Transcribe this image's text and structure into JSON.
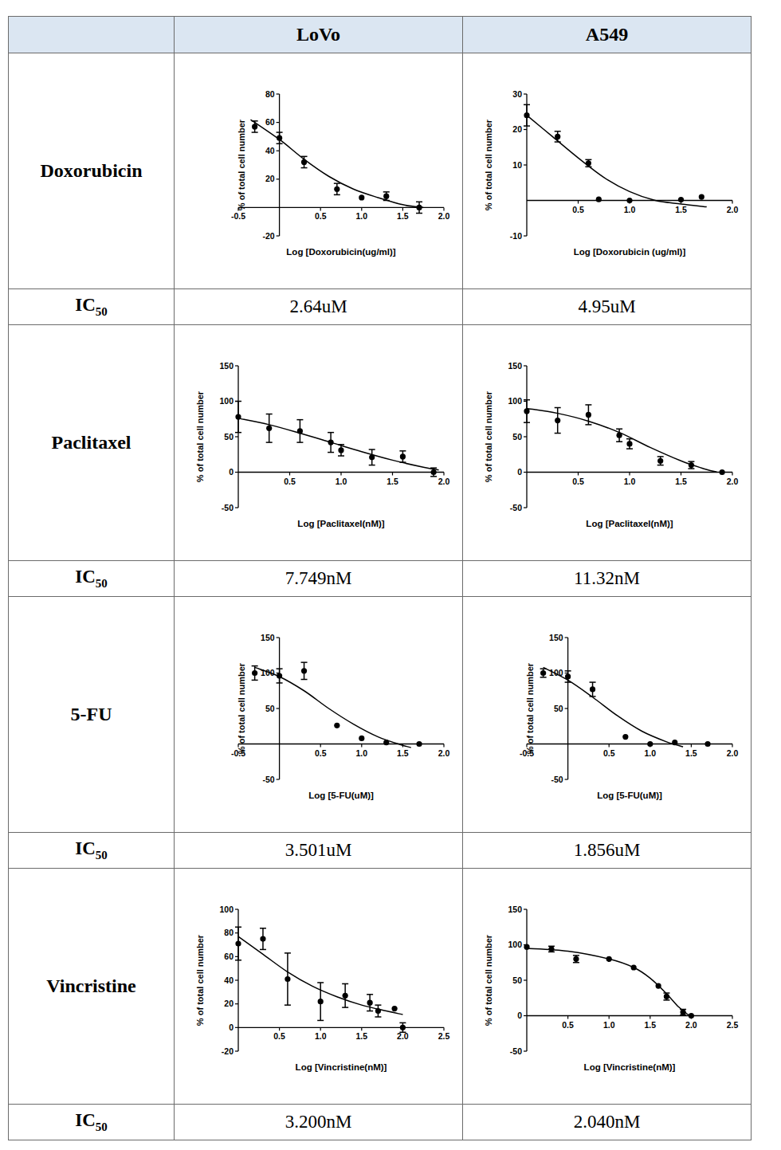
{
  "table": {
    "header": [
      "LoVo",
      "A549"
    ],
    "ic50_label": [
      "IC",
      "50"
    ],
    "rows": [
      {
        "drug": "Doxorubicin",
        "ic50": [
          "2.64uM",
          "4.95uM"
        ]
      },
      {
        "drug": "Paclitaxel",
        "ic50": [
          "7.749nM",
          "11.32nM"
        ]
      },
      {
        "drug": "5-FU",
        "ic50": [
          "3.501uM",
          "1.856uM"
        ]
      },
      {
        "drug": "Vincristine",
        "ic50": [
          "3.200nM",
          "2.040nM"
        ]
      }
    ]
  },
  "chart_data": [
    {
      "type": "scatter",
      "x_label": "Log [Doxorubicin(ug/ml)]",
      "y_label": "% of total cell number",
      "xlim": [
        -0.5,
        2
      ],
      "ylim": [
        -20,
        80
      ],
      "xticks": [
        -0.5,
        0.5,
        {
          "value": 1,
          "label": "1.0"
        },
        1.5,
        {
          "value": 2,
          "label": "2.0"
        }
      ],
      "yticks": [
        -20,
        20,
        40,
        60,
        80
      ],
      "series": [
        {
          "type": "scatter",
          "marker": "circle",
          "x": [
            -0.3,
            0,
            0.3,
            0.7,
            1,
            1.3,
            1.7
          ],
          "values": [
            57,
            49,
            32,
            13,
            7,
            8,
            0
          ],
          "errors": [
            4,
            4,
            4,
            4,
            0,
            3,
            4
          ]
        },
        {
          "type": "line",
          "line_style": "solid",
          "x": [
            -0.35,
            0,
            0.3,
            0.6,
            0.9,
            1.2,
            1.5,
            1.75
          ],
          "values": [
            62,
            48,
            34,
            22,
            13,
            7,
            2,
            0
          ]
        }
      ]
    },
    {
      "type": "scatter",
      "x_label": "Log [Doxorubicin (ug/ml)]",
      "y_label": "% of total cell number",
      "xlim": [
        0,
        2
      ],
      "ylim": [
        -10,
        30
      ],
      "xticks": [
        0.5,
        {
          "value": 1,
          "label": "1.0"
        },
        1.5,
        {
          "value": 2,
          "label": "2.0"
        }
      ],
      "yticks": [
        -10,
        10,
        20,
        30
      ],
      "series": [
        {
          "type": "scatter",
          "marker": "circle",
          "x": [
            0,
            0.3,
            0.6,
            0.7,
            1,
            1.5,
            1.7
          ],
          "values": [
            24,
            18,
            10.5,
            0.3,
            0,
            0.2,
            1
          ],
          "errors": [
            3,
            1.5,
            1,
            0,
            0,
            0,
            0
          ]
        },
        {
          "type": "line",
          "line_style": "solid",
          "x": [
            0,
            0.25,
            0.5,
            0.75,
            1,
            1.25,
            1.5,
            1.75
          ],
          "values": [
            24,
            18,
            12,
            6.5,
            2.5,
            0,
            -1,
            -1.8
          ]
        }
      ]
    },
    {
      "type": "scatter",
      "x_label": "Log [Paclitaxel(nM)]",
      "y_label": "% of total cell number",
      "xlim": [
        0,
        2
      ],
      "ylim": [
        -50,
        150
      ],
      "xticks": [
        0.5,
        {
          "value": 1,
          "label": "1.0"
        },
        1.5,
        {
          "value": 2,
          "label": "2.0"
        }
      ],
      "yticks": [
        -50,
        0,
        50,
        100,
        150
      ],
      "series": [
        {
          "type": "scatter",
          "marker": "circle",
          "x": [
            0,
            0.3,
            0.6,
            0.9,
            1,
            1.3,
            1.6,
            1.9
          ],
          "values": [
            78,
            62,
            58,
            42,
            31,
            21,
            22,
            0
          ],
          "errors": [
            22,
            20,
            16,
            14,
            8,
            11,
            8,
            6
          ]
        },
        {
          "type": "line",
          "line_style": "solid",
          "x": [
            0,
            0.3,
            0.6,
            0.9,
            1.2,
            1.5,
            1.8,
            1.95
          ],
          "values": [
            76,
            67,
            55,
            42,
            29,
            17,
            7,
            3
          ]
        }
      ]
    },
    {
      "type": "scatter",
      "x_label": "Log [Paclitaxel(nM)]",
      "y_label": "% of total cell number",
      "xlim": [
        0,
        2
      ],
      "ylim": [
        -50,
        150
      ],
      "xticks": [
        0.5,
        {
          "value": 1,
          "label": "1.0"
        },
        1.5,
        {
          "value": 2,
          "label": "2.0"
        }
      ],
      "yticks": [
        -50,
        0,
        50,
        100,
        150
      ],
      "series": [
        {
          "type": "scatter",
          "marker": "circle",
          "x": [
            0,
            0.3,
            0.6,
            0.9,
            1,
            1.3,
            1.6,
            1.9
          ],
          "values": [
            86,
            73,
            81,
            52,
            40,
            16,
            10,
            0
          ],
          "errors": [
            16,
            18,
            14,
            9,
            7,
            6,
            5,
            0
          ]
        },
        {
          "type": "line",
          "line_style": "solid",
          "x": [
            0,
            0.3,
            0.6,
            0.9,
            1.2,
            1.5,
            1.7,
            1.85
          ],
          "values": [
            90,
            83,
            72,
            56,
            35,
            16,
            6,
            0
          ]
        }
      ]
    },
    {
      "type": "scatter",
      "x_label": "Log [5-FU(uM)]",
      "y_label": "% of total cell number",
      "xlim": [
        -0.5,
        2
      ],
      "ylim": [
        -50,
        150
      ],
      "xticks": [
        -0.5,
        0.5,
        {
          "value": 1,
          "label": "1.0"
        },
        1.5,
        {
          "value": 2,
          "label": "2.0"
        }
      ],
      "yticks": [
        -50,
        50,
        100,
        150
      ],
      "series": [
        {
          "type": "scatter",
          "marker": "circle",
          "x": [
            -0.3,
            0,
            0.3,
            0.7,
            1,
            1.3,
            1.7
          ],
          "values": [
            100,
            96,
            103,
            26,
            8,
            2,
            0
          ],
          "errors": [
            10,
            10,
            12,
            0,
            0,
            0,
            0
          ]
        },
        {
          "type": "line",
          "line_style": "solid",
          "x": [
            -0.3,
            0,
            0.3,
            0.6,
            0.9,
            1.2,
            1.5,
            1.6
          ],
          "values": [
            108,
            95,
            75,
            50,
            28,
            10,
            -2,
            -5
          ]
        }
      ]
    },
    {
      "type": "scatter",
      "x_label": "Log [5-FU(uM)]",
      "y_label": "% of total cell number",
      "xlim": [
        -0.5,
        2
      ],
      "ylim": [
        -50,
        150
      ],
      "xticks": [
        -0.5,
        0.5,
        {
          "value": 1,
          "label": "1.0"
        },
        1.5,
        {
          "value": 2,
          "label": "2.0"
        }
      ],
      "yticks": [
        -50,
        50,
        100,
        150
      ],
      "series": [
        {
          "type": "scatter",
          "marker": "circle",
          "x": [
            -0.3,
            0,
            0.3,
            0.7,
            1,
            1.3,
            1.7
          ],
          "values": [
            100,
            95,
            77,
            10,
            0,
            2,
            0
          ],
          "errors": [
            6,
            8,
            10,
            0,
            0,
            0,
            0
          ]
        },
        {
          "type": "line",
          "line_style": "solid",
          "x": [
            -0.3,
            0,
            0.3,
            0.6,
            0.9,
            1.2,
            1.4
          ],
          "values": [
            108,
            90,
            66,
            40,
            18,
            3,
            -4
          ]
        }
      ]
    },
    {
      "type": "scatter",
      "x_label": "Log [Vincristine(nM)]",
      "y_label": "% of total cell number",
      "xlim": [
        0,
        2.5
      ],
      "ylim": [
        -20,
        100
      ],
      "xticks": [
        0.5,
        {
          "value": 1,
          "label": "1.0"
        },
        1.5,
        {
          "value": 2,
          "label": "2.0"
        },
        2.5
      ],
      "yticks": [
        -20,
        0,
        20,
        40,
        60,
        80,
        100
      ],
      "series": [
        {
          "type": "scatter",
          "marker": "circle",
          "x": [
            0,
            0.3,
            0.6,
            1,
            1.3,
            1.6,
            1.7,
            1.9,
            2
          ],
          "values": [
            71,
            75,
            41,
            22,
            27,
            21,
            14,
            16,
            0
          ],
          "errors": [
            14,
            9,
            22,
            16,
            10,
            7,
            5,
            0,
            4
          ]
        },
        {
          "type": "line",
          "line_style": "solid",
          "x": [
            0,
            0.3,
            0.6,
            0.9,
            1.2,
            1.5,
            1.8,
            2
          ],
          "values": [
            77,
            62,
            47,
            35,
            26,
            19,
            14,
            11
          ]
        }
      ]
    },
    {
      "type": "scatter",
      "x_label": "Log [Vincristine(nM)]",
      "y_label": "% of total cell number",
      "xlim": [
        0,
        2.5
      ],
      "ylim": [
        -50,
        150
      ],
      "xticks": [
        0.5,
        {
          "value": 1,
          "label": "1.0"
        },
        1.5,
        {
          "value": 2,
          "label": "2.0"
        },
        2.5
      ],
      "yticks": [
        -50,
        0,
        50,
        100,
        150
      ],
      "series": [
        {
          "type": "scatter",
          "marker": "circle",
          "x": [
            0,
            0.3,
            0.6,
            1,
            1.3,
            1.6,
            1.7,
            1.9,
            2
          ],
          "values": [
            97,
            94,
            80,
            80,
            68,
            42,
            27,
            5,
            0
          ],
          "errors": [
            0,
            4,
            5,
            0,
            0,
            0,
            5,
            4,
            0
          ]
        },
        {
          "type": "line",
          "line_style": "solid",
          "x": [
            0,
            0.5,
            1,
            1.3,
            1.5,
            1.7,
            1.85,
            2
          ],
          "values": [
            95,
            91,
            80,
            68,
            53,
            31,
            12,
            -2
          ]
        }
      ]
    }
  ]
}
